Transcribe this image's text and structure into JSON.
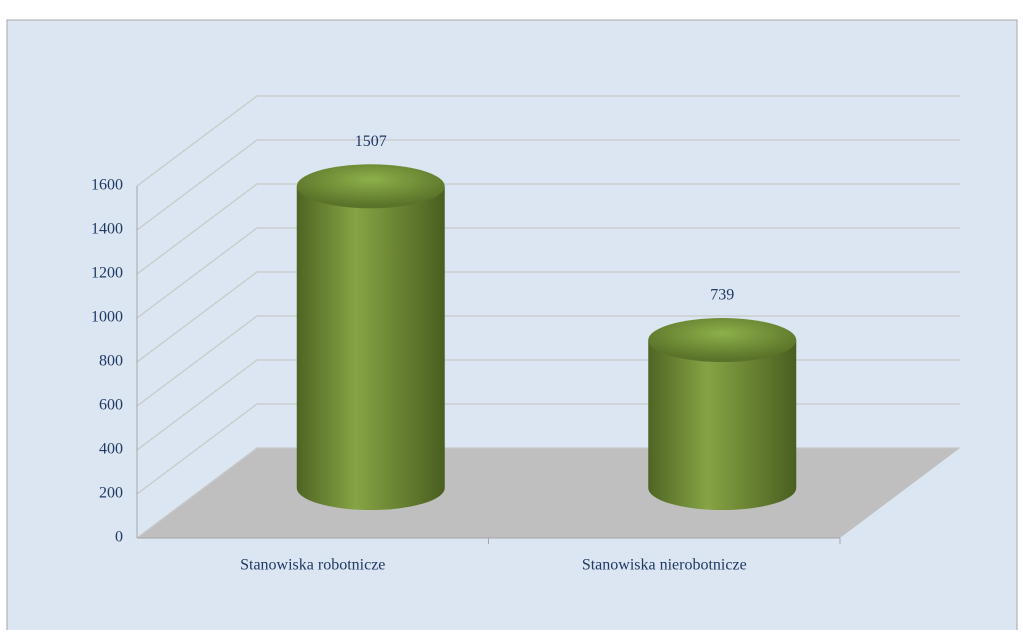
{
  "chart_data": {
    "type": "bar3d",
    "categories": [
      "Stanowiska robotnicze",
      "Stanowiska nierobotnicze"
    ],
    "values": [
      1507,
      739
    ],
    "color": "#77933c",
    "ylim": [
      0,
      1600
    ],
    "yticks": [
      0,
      200,
      400,
      600,
      800,
      1000,
      1200,
      1400,
      1600
    ],
    "grid": true
  }
}
